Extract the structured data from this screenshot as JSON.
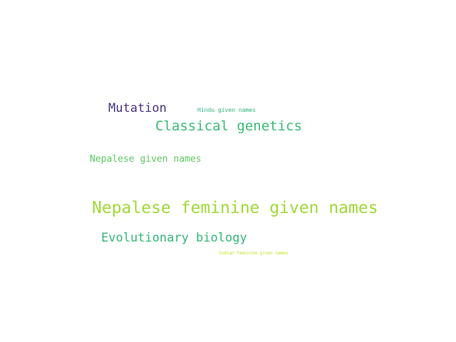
{
  "word_cloud": {
    "words": [
      {
        "text": "Mutation",
        "color": "#46337e"
      },
      {
        "text": "Hindu given names",
        "color": "#2fb47c"
      },
      {
        "text": "Classical genetics",
        "color": "#3bbb75"
      },
      {
        "text": "Nepalese given names",
        "color": "#5ec962"
      },
      {
        "text": "Nepalese feminine given names",
        "color": "#a0da39"
      },
      {
        "text": "Evolutionary biology",
        "color": "#35b779"
      },
      {
        "text": "Indian feminine given names",
        "color": "#c8e020"
      }
    ]
  }
}
